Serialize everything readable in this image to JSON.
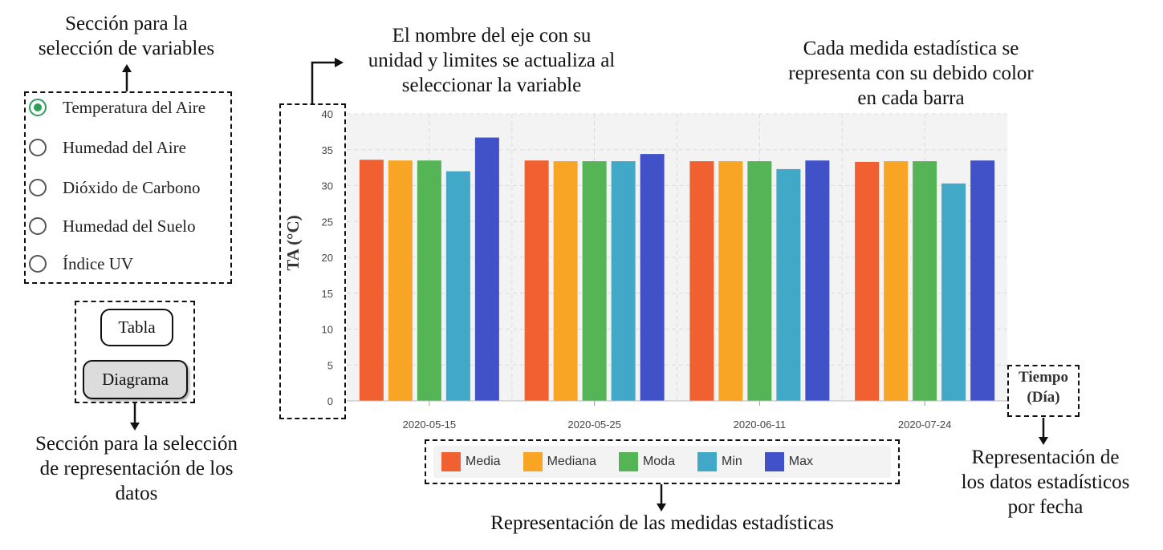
{
  "annotations": {
    "variables_title_line1": "Sección para la",
    "variables_title_line2": "selección de variables",
    "axis_note_line1": "El nombre del eje con su",
    "axis_note_line2": "unidad y limites se actualiza al",
    "axis_note_line3": "seleccionar la variable",
    "color_note_line1": "Cada medida estadística se",
    "color_note_line2": "representa con su debido color",
    "color_note_line3": "en cada barra",
    "representation_line1": "Sección para la selección",
    "representation_line2": "de representación de los",
    "representation_line3": "datos",
    "legend_note": "Representación de las medidas estadísticas",
    "date_note_line1": "Representación de",
    "date_note_line2": "los datos estadísticos",
    "date_note_line3": "por fecha"
  },
  "variables": [
    {
      "label": "Temperatura del Aire",
      "checked": true
    },
    {
      "label": "Humedad del Aire",
      "checked": false
    },
    {
      "label": "Dióxido de Carbono",
      "checked": false
    },
    {
      "label": "Humedad del Suelo",
      "checked": false
    },
    {
      "label": "Índice UV",
      "checked": false
    }
  ],
  "buttons": {
    "tabla": "Tabla",
    "diagrama": "Diagrama",
    "active": "diagrama"
  },
  "x_axis_title_line1": "Tiempo",
  "x_axis_title_line2": "(Día)",
  "colors": {
    "accent_green": "#2e9e5b",
    "plot_background": "#f3f3f3"
  },
  "chart_data": {
    "type": "bar",
    "title": "",
    "ylabel": "TA (°C)",
    "xlabel": "Tiempo (Día)",
    "ylim": [
      0,
      40
    ],
    "yticks": [
      0,
      5,
      10,
      15,
      20,
      25,
      30,
      35,
      40
    ],
    "grid": true,
    "legend_position": "bottom",
    "categories": [
      "2020-05-15",
      "2020-05-25",
      "2020-06-11",
      "2020-07-24"
    ],
    "series": [
      {
        "name": "Media",
        "color": "#f06030",
        "values": [
          33.6,
          33.5,
          33.4,
          33.3
        ]
      },
      {
        "name": "Mediana",
        "color": "#f8a424",
        "values": [
          33.5,
          33.4,
          33.4,
          33.4
        ]
      },
      {
        "name": "Moda",
        "color": "#55b456",
        "values": [
          33.5,
          33.4,
          33.4,
          33.4
        ]
      },
      {
        "name": "Min",
        "color": "#41a8c8",
        "values": [
          32.0,
          33.4,
          32.3,
          30.3
        ]
      },
      {
        "name": "Max",
        "color": "#4152c8",
        "values": [
          36.7,
          34.4,
          33.5,
          33.5
        ]
      }
    ]
  }
}
